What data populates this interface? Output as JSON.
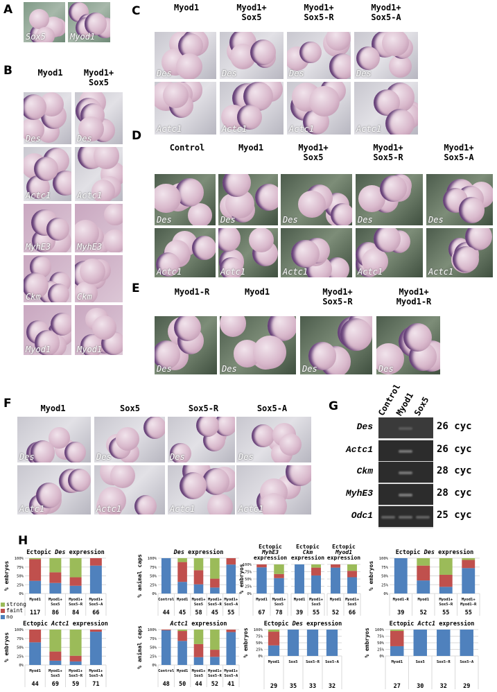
{
  "panels": {
    "A": {
      "label": "A",
      "images": [
        "Sox5",
        "Myod1"
      ]
    },
    "B": {
      "label": "B",
      "columns": [
        "Myod1",
        "Myod1+\nSox5"
      ],
      "rows": [
        "Des",
        "Actc1",
        "MyhE3",
        "Ckm",
        "Myod1"
      ]
    },
    "C": {
      "label": "C",
      "columns": [
        "Myod1",
        "Myod1+\nSox5",
        "Myod1+\nSox5-R",
        "Myod1+\nSox5-A"
      ],
      "rows": [
        "Des",
        "Actc1"
      ]
    },
    "D": {
      "label": "D",
      "columns": [
        "Control",
        "Myod1",
        "Myod1+\nSox5",
        "Myod1+\nSox5-R",
        "Myod1+\nSox5-A"
      ],
      "rows": [
        "Des",
        "Actc1"
      ]
    },
    "E": {
      "label": "E",
      "columns": [
        "Myod1-R",
        "Myod1",
        "Myod1+\nSox5-R",
        "Myod1+\nMyod1-R"
      ],
      "rows": [
        "Des"
      ]
    },
    "F": {
      "label": "F",
      "columns": [
        "Myod1",
        "Sox5",
        "Sox5-R",
        "Sox5-A"
      ],
      "rows": [
        "Des",
        "Actc1"
      ]
    },
    "G": {
      "label": "G",
      "lanes": [
        "Control",
        "Myod1",
        "Sox5"
      ],
      "genes": [
        {
          "name": "Des",
          "cycles": "26 cyc",
          "bands": [
            0,
            0.35,
            0
          ]
        },
        {
          "name": "Actc1",
          "cycles": "26 cyc",
          "bands": [
            0,
            0.7,
            0
          ]
        },
        {
          "name": "Ckm",
          "cycles": "28 cyc",
          "bands": [
            0,
            0.7,
            0
          ]
        },
        {
          "name": "MyhE3",
          "cycles": "28 cyc",
          "bands": [
            0,
            0.75,
            0
          ]
        },
        {
          "name": "Odc1",
          "cycles": "25 cyc",
          "bands": [
            0.5,
            0.55,
            0.5
          ]
        }
      ]
    },
    "H": {
      "label": "H"
    }
  },
  "legend": [
    {
      "label": "strong",
      "color": "#9bbb59"
    },
    {
      "label": "faint",
      "color": "#c0504d"
    },
    {
      "label": "no",
      "color": "#4f81bd"
    }
  ],
  "chart_data": [
    {
      "type": "bar",
      "stacked": true,
      "title": {
        "pre": "Ectopic ",
        "gene": "Des",
        "post": " expression"
      },
      "ylabel": "% embryos",
      "ylim": [
        0,
        100
      ],
      "yticks": [
        "0%",
        "25%",
        "50%",
        "75%",
        "100%"
      ],
      "categories": [
        "Myod1",
        "Myod1+\nSox5",
        "Myod1+\nSox5-R",
        "Myod1+\nSox5-A"
      ],
      "n": [
        "117",
        "86",
        "84",
        "66"
      ],
      "series": [
        {
          "name": "no",
          "values": [
            36,
            30,
            22,
            79
          ]
        },
        {
          "name": "faint",
          "values": [
            61,
            30,
            24,
            21
          ]
        },
        {
          "name": "strong",
          "values": [
            3,
            40,
            54,
            0
          ]
        }
      ]
    },
    {
      "type": "bar",
      "stacked": true,
      "title": {
        "pre": "Ectopic ",
        "gene": "Actc1",
        "post": " expression"
      },
      "ylabel": "% embryos",
      "ylim": [
        0,
        100
      ],
      "yticks": [
        "0%",
        "25%",
        "50%",
        "75%",
        "100%"
      ],
      "categories": [
        "Myod1",
        "Myod1+\nSox5",
        "Myod1+\nSox5-R",
        "Myod1+\nSox5-A"
      ],
      "n": [
        "44",
        "69",
        "59",
        "71"
      ],
      "series": [
        {
          "name": "no",
          "values": [
            64,
            12,
            10,
            94
          ]
        },
        {
          "name": "faint",
          "values": [
            36,
            26,
            16,
            6
          ]
        },
        {
          "name": "strong",
          "values": [
            0,
            62,
            74,
            0
          ]
        }
      ]
    },
    {
      "type": "bar",
      "stacked": true,
      "title": {
        "pre": "",
        "gene": "Des",
        "post": " expression"
      },
      "ylabel": "% animal caps",
      "ylim": [
        0,
        100
      ],
      "yticks": [
        "0%",
        "25%",
        "50%",
        "75%",
        "100%"
      ],
      "categories": [
        "Control",
        "Myod1",
        "Myod1+\nSox5",
        "Myod1+\nSox5-R",
        "Myod1+\nSox5-A"
      ],
      "n": [
        "44",
        "45",
        "58",
        "45",
        "55"
      ],
      "series": [
        {
          "name": "no",
          "values": [
            100,
            33,
            26,
            17,
            82
          ]
        },
        {
          "name": "faint",
          "values": [
            0,
            56,
            40,
            25,
            18
          ]
        },
        {
          "name": "strong",
          "values": [
            0,
            11,
            34,
            58,
            0
          ]
        }
      ]
    },
    {
      "type": "bar",
      "stacked": true,
      "title": {
        "pre": "",
        "gene": "Actc1",
        "post": " expression"
      },
      "ylabel": "% animal caps",
      "ylim": [
        0,
        100
      ],
      "yticks": [
        "0%",
        "25%",
        "50%",
        "75%",
        "100%"
      ],
      "categories": [
        "Control",
        "Myod1",
        "Myod1+\nSox5",
        "Myod1+\nSox5-R",
        "Myod1+\nSox5-A"
      ],
      "n": [
        "48",
        "50",
        "44",
        "52",
        "41"
      ],
      "series": [
        {
          "name": "no",
          "values": [
            98,
            68,
            22,
            23,
            93
          ]
        },
        {
          "name": "faint",
          "values": [
            2,
            28,
            37,
            20,
            7
          ]
        },
        {
          "name": "strong",
          "values": [
            0,
            4,
            41,
            57,
            0
          ]
        }
      ]
    },
    {
      "type": "bar",
      "stacked": true,
      "title": {
        "pre": "Ectopic ",
        "gene": "MyhE3",
        "post": "\nexpression"
      },
      "ylabel": "% embryos",
      "ylim": [
        0,
        100
      ],
      "yticks": [
        "0%",
        "25%",
        "50%",
        "75%",
        "100%"
      ],
      "categories": [
        "Myod1",
        "Myod1+\nSox5"
      ],
      "n": [
        "67",
        "78"
      ],
      "series": [
        {
          "name": "no",
          "values": [
            90,
            53
          ]
        },
        {
          "name": "faint",
          "values": [
            10,
            14
          ]
        },
        {
          "name": "strong",
          "values": [
            0,
            33
          ]
        }
      ]
    },
    {
      "type": "bar",
      "stacked": true,
      "title": {
        "pre": "Ectopic ",
        "gene": "Ckm",
        "post": "\nexpression"
      },
      "ylim": [
        0,
        100
      ],
      "categories": [
        "Myod1",
        "Myod1+\nSox5"
      ],
      "n": [
        "39",
        "55"
      ],
      "series": [
        {
          "name": "no",
          "values": [
            100,
            62
          ]
        },
        {
          "name": "faint",
          "values": [
            0,
            27
          ]
        },
        {
          "name": "strong",
          "values": [
            0,
            11
          ]
        }
      ]
    },
    {
      "type": "bar",
      "stacked": true,
      "title": {
        "pre": "Ectopic ",
        "gene": "Myod1",
        "post": "\nexpression"
      },
      "ylim": [
        0,
        100
      ],
      "categories": [
        "Myod1",
        "Myod1+\nSox5"
      ],
      "n": [
        "52",
        "66"
      ],
      "series": [
        {
          "name": "no",
          "values": [
            89,
            56
          ]
        },
        {
          "name": "faint",
          "values": [
            11,
            22
          ]
        },
        {
          "name": "strong",
          "values": [
            0,
            22
          ]
        }
      ]
    },
    {
      "type": "bar",
      "stacked": true,
      "title": {
        "pre": "Ectopic ",
        "gene": "Des",
        "post": " expression"
      },
      "ylabel": "% embryos",
      "ylim": [
        0,
        100
      ],
      "yticks": [
        "0%",
        "25%",
        "50%",
        "75%",
        "100%"
      ],
      "categories": [
        "Myod1-R",
        "Myod1",
        "Myod1+\nSox5-R",
        "Myod1+\nMyod1-R"
      ],
      "n": [
        "39",
        "52",
        "55",
        "55"
      ],
      "series": [
        {
          "name": "no",
          "values": [
            100,
            37,
            19,
            72
          ]
        },
        {
          "name": "faint",
          "values": [
            0,
            42,
            34,
            23
          ]
        },
        {
          "name": "strong",
          "values": [
            0,
            21,
            47,
            5
          ]
        }
      ]
    },
    {
      "type": "bar",
      "stacked": true,
      "title": {
        "pre": "Ectopic ",
        "gene": "Des",
        "post": " expression"
      },
      "ylabel": "% embryos",
      "ylim": [
        0,
        100
      ],
      "yticks": [
        "0%",
        "25%",
        "50%",
        "75%",
        "100%"
      ],
      "categories": [
        "Myod1",
        "Sox5",
        "Sox5-R",
        "Sox5-A"
      ],
      "n": [
        "29",
        "35",
        "33",
        "32"
      ],
      "series": [
        {
          "name": "no",
          "values": [
            40,
            100,
            100,
            100
          ]
        },
        {
          "name": "faint",
          "values": [
            52,
            0,
            0,
            0
          ]
        },
        {
          "name": "strong",
          "values": [
            8,
            0,
            0,
            0
          ]
        }
      ]
    },
    {
      "type": "bar",
      "stacked": true,
      "title": {
        "pre": "Ectopic ",
        "gene": "Actc1",
        "post": " expression"
      },
      "ylabel": "% embryos",
      "ylim": [
        0,
        100
      ],
      "yticks": [
        "0%",
        "25%",
        "50%",
        "75%",
        "100%"
      ],
      "categories": [
        "Myod1",
        "Sox5",
        "Sox5-R",
        "Sox5-A"
      ],
      "n": [
        "27",
        "30",
        "32",
        "29"
      ],
      "series": [
        {
          "name": "no",
          "values": [
            37,
            100,
            100,
            100
          ]
        },
        {
          "name": "faint",
          "values": [
            58,
            0,
            0,
            0
          ]
        },
        {
          "name": "strong",
          "values": [
            5,
            0,
            0,
            0
          ]
        }
      ]
    }
  ]
}
